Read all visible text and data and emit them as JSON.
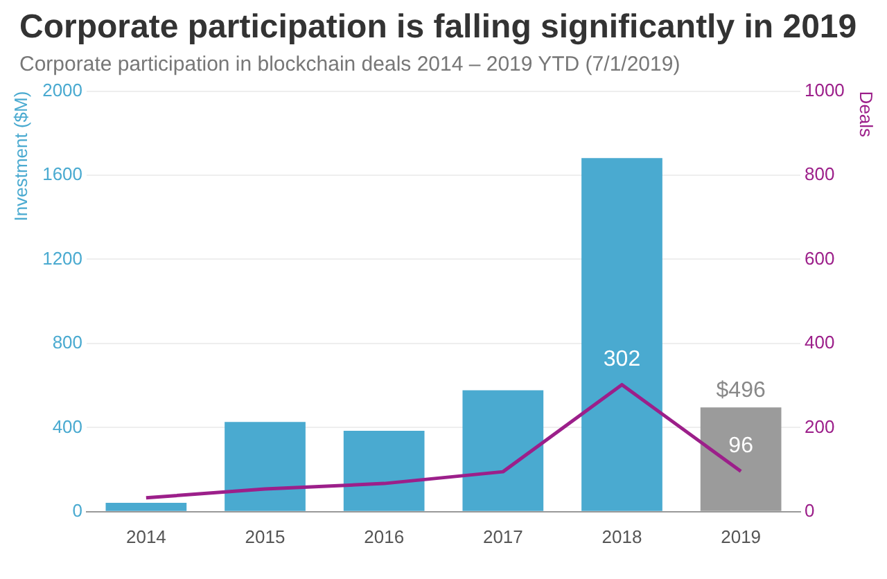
{
  "chart_data": {
    "type": "bar",
    "title": "Corporate participation is falling significantly in 2019",
    "subtitle": "Corporate participation in blockchain deals 2014 – 2019 YTD (7/1/2019)",
    "ylabel": "Investment ($M)",
    "y2label": "Deals",
    "categories": [
      "2014",
      "2015",
      "2016",
      "2017",
      "2018",
      "2019"
    ],
    "series": [
      {
        "colors": [
          "#4aaad0",
          "#4aaad0",
          "#4aaad0",
          "#4aaad0",
          "#4aaad0",
          "#9b9b9b"
        ],
        "values": [
          42,
          427,
          385,
          577,
          1682,
          496
        ],
        "value_labels": [
          null,
          null,
          null,
          null,
          null,
          "$496"
        ]
      },
      {
        "type": "line",
        "axis": "y2",
        "color": "#9c1f8a",
        "values": [
          33,
          54,
          67,
          95,
          302,
          96
        ],
        "value_labels": [
          null,
          null,
          null,
          null,
          "302",
          "96"
        ]
      }
    ],
    "ylim": [
      0,
      2000
    ],
    "yticks": [
      0,
      400,
      800,
      1200,
      1600,
      2000
    ],
    "y2lim": [
      0,
      1000
    ],
    "y2ticks": [
      0,
      200,
      400,
      600,
      800,
      1000
    ],
    "grid": "y",
    "legend": false
  }
}
